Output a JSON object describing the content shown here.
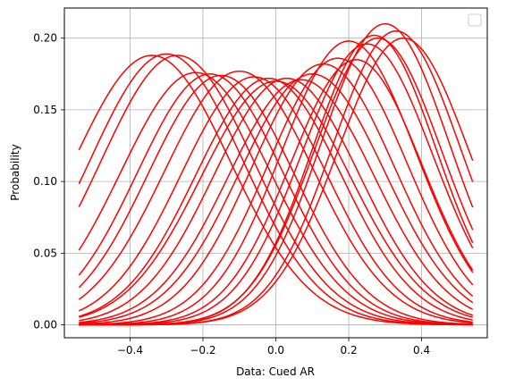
{
  "chart_data": {
    "type": "line",
    "title": "",
    "xlabel": "Data: Cued AR",
    "ylabel": "Probability",
    "xlim": [
      -0.58,
      0.58
    ],
    "ylim": [
      -0.009,
      0.221
    ],
    "xticks": [
      -0.4,
      -0.2,
      0.0,
      0.2,
      0.4
    ],
    "xtick_labels": [
      "−0.4",
      "−0.2",
      "0.0",
      "0.2",
      "0.4"
    ],
    "yticks": [
      0.0,
      0.05,
      0.1,
      0.15,
      0.2
    ],
    "ytick_labels": [
      "0.00",
      "0.05",
      "0.10",
      "0.15",
      "0.20"
    ],
    "grid": true,
    "legend": "top-right (empty)",
    "line_color": "#ff0000",
    "x_range": [
      -0.54,
      0.54
    ],
    "curve_params": [
      {
        "mu": -0.34,
        "sd": 0.215,
        "peak": 0.188
      },
      {
        "mu": -0.3,
        "sd": 0.21,
        "peak": 0.189
      },
      {
        "mu": -0.27,
        "sd": 0.21,
        "peak": 0.188
      },
      {
        "mu": -0.22,
        "sd": 0.205,
        "peak": 0.176
      },
      {
        "mu": -0.18,
        "sd": 0.2,
        "peak": 0.175
      },
      {
        "mu": -0.15,
        "sd": 0.2,
        "peak": 0.174
      },
      {
        "mu": -0.1,
        "sd": 0.205,
        "peak": 0.177
      },
      {
        "mu": -0.06,
        "sd": 0.2,
        "peak": 0.173
      },
      {
        "mu": -0.02,
        "sd": 0.2,
        "peak": 0.172
      },
      {
        "mu": 0.0,
        "sd": 0.205,
        "peak": 0.17
      },
      {
        "mu": 0.03,
        "sd": 0.2,
        "peak": 0.172
      },
      {
        "mu": 0.07,
        "sd": 0.2,
        "peak": 0.171
      },
      {
        "mu": 0.1,
        "sd": 0.2,
        "peak": 0.175
      },
      {
        "mu": 0.13,
        "sd": 0.195,
        "peak": 0.182
      },
      {
        "mu": 0.17,
        "sd": 0.19,
        "peak": 0.186
      },
      {
        "mu": 0.2,
        "sd": 0.185,
        "peak": 0.198
      },
      {
        "mu": 0.22,
        "sd": 0.18,
        "peak": 0.185
      },
      {
        "mu": 0.25,
        "sd": 0.18,
        "peak": 0.196
      },
      {
        "mu": 0.28,
        "sd": 0.175,
        "peak": 0.2
      },
      {
        "mu": 0.3,
        "sd": 0.175,
        "peak": 0.21
      },
      {
        "mu": 0.33,
        "sd": 0.175,
        "peak": 0.205
      },
      {
        "mu": 0.35,
        "sd": 0.18,
        "peak": 0.2
      },
      {
        "mu": 0.27,
        "sd": 0.17,
        "peak": 0.202
      }
    ]
  }
}
